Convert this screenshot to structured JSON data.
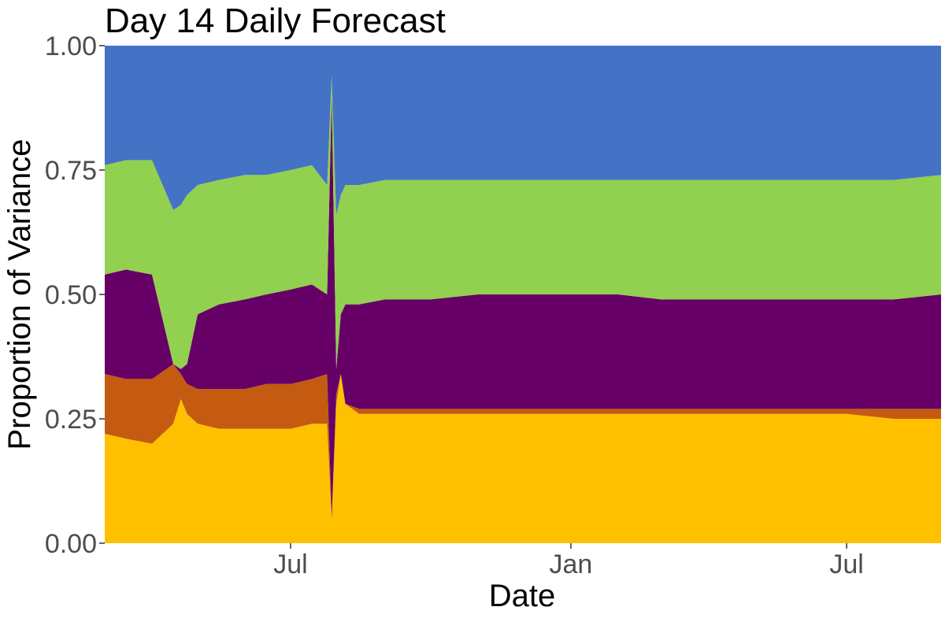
{
  "chart_data": {
    "type": "area",
    "stacked": true,
    "title": "Day 14 Daily Forecast",
    "xlabel": "Date",
    "ylabel": "Proportion of Variance",
    "x_range": [
      "2020-03-01",
      "2021-09-01"
    ],
    "ylim": [
      0,
      1
    ],
    "grid": false,
    "x_ticks": [
      {
        "date": "2020-07-01",
        "label": "Jul"
      },
      {
        "date": "2021-01-01",
        "label": "Jan"
      },
      {
        "date": "2021-07-01",
        "label": "Jul"
      }
    ],
    "y_ticks": [
      {
        "value": 0,
        "label": "0.00"
      },
      {
        "value": 0.25,
        "label": "0.25"
      },
      {
        "value": 0.5,
        "label": "0.50"
      },
      {
        "value": 0.75,
        "label": "0.75"
      },
      {
        "value": 1,
        "label": "1.00"
      }
    ],
    "series_colors": [
      "#FFC000",
      "#C55A11",
      "#660066",
      "#92D050",
      "#4472C4"
    ],
    "x": [
      "2020-03-01",
      "2020-03-15",
      "2020-04-01",
      "2020-04-15",
      "2020-04-20",
      "2020-04-24",
      "2020-05-01",
      "2020-05-15",
      "2020-06-01",
      "2020-06-15",
      "2020-07-01",
      "2020-07-15",
      "2020-07-25",
      "2020-07-28",
      "2020-07-31",
      "2020-08-03",
      "2020-08-06",
      "2020-08-15",
      "2020-09-01",
      "2020-10-01",
      "2020-11-01",
      "2020-12-01",
      "2021-01-01",
      "2021-02-01",
      "2021-03-01",
      "2021-04-01",
      "2021-05-01",
      "2021-06-01",
      "2021-07-01",
      "2021-08-01",
      "2021-09-01"
    ],
    "stack_boundaries": [
      [
        0.22,
        0.21,
        0.2,
        0.24,
        0.29,
        0.26,
        0.24,
        0.23,
        0.23,
        0.23,
        0.23,
        0.24,
        0.24,
        0.05,
        0.28,
        0.34,
        0.28,
        0.26,
        0.26,
        0.26,
        0.26,
        0.26,
        0.26,
        0.26,
        0.26,
        0.26,
        0.26,
        0.26,
        0.26,
        0.25,
        0.25
      ],
      [
        0.34,
        0.33,
        0.33,
        0.36,
        0.34,
        0.32,
        0.31,
        0.31,
        0.31,
        0.32,
        0.32,
        0.33,
        0.34,
        0.05,
        0.3,
        0.34,
        0.28,
        0.27,
        0.27,
        0.27,
        0.27,
        0.27,
        0.27,
        0.27,
        0.27,
        0.27,
        0.27,
        0.27,
        0.27,
        0.27,
        0.27
      ],
      [
        0.54,
        0.55,
        0.54,
        0.36,
        0.35,
        0.36,
        0.46,
        0.48,
        0.49,
        0.5,
        0.51,
        0.52,
        0.5,
        0.9,
        0.35,
        0.46,
        0.48,
        0.48,
        0.49,
        0.49,
        0.5,
        0.5,
        0.5,
        0.5,
        0.49,
        0.49,
        0.49,
        0.49,
        0.49,
        0.49,
        0.5
      ],
      [
        0.76,
        0.77,
        0.77,
        0.67,
        0.68,
        0.7,
        0.72,
        0.73,
        0.74,
        0.74,
        0.75,
        0.76,
        0.72,
        0.94,
        0.66,
        0.7,
        0.72,
        0.72,
        0.73,
        0.73,
        0.73,
        0.73,
        0.73,
        0.73,
        0.73,
        0.73,
        0.73,
        0.73,
        0.73,
        0.73,
        0.74
      ],
      [
        1,
        1,
        1,
        1,
        1,
        1,
        1,
        1,
        1,
        1,
        1,
        1,
        1,
        1,
        1,
        1,
        1,
        1,
        1,
        1,
        1,
        1,
        1,
        1,
        1,
        1,
        1,
        1,
        1,
        1,
        1
      ]
    ]
  }
}
